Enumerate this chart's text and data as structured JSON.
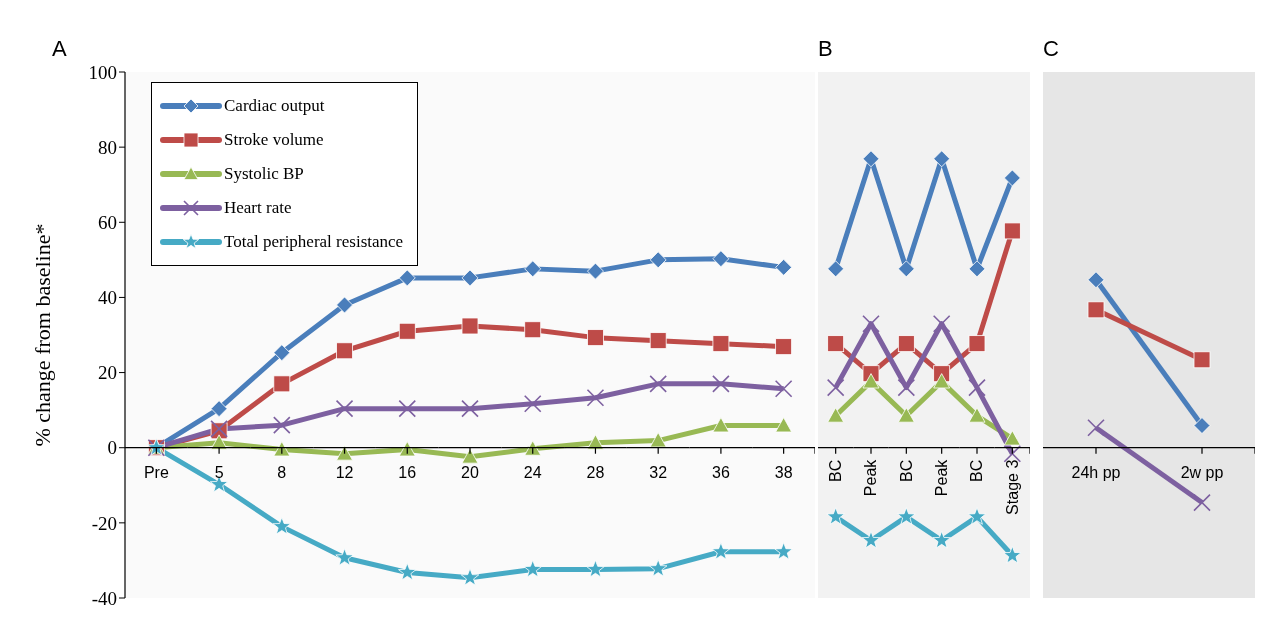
{
  "chart_data": [
    {
      "type": "line",
      "title": "A",
      "ylabel": "% change from baseline*",
      "categories": [
        "Pre",
        "5",
        "8",
        "12",
        "16",
        "20",
        "24",
        "28",
        "32",
        "36",
        "38"
      ],
      "ylim": [
        -40,
        100
      ],
      "yticks": [
        -40,
        -20,
        0,
        20,
        40,
        60,
        80,
        100
      ],
      "grid": false,
      "legend": "top left",
      "line_style": "solid",
      "series": [
        {
          "name": "Cardiac output",
          "color": "#4a7ebb",
          "marker": "diamond",
          "values": [
            0,
            10.4,
            25.3,
            38,
            45.2,
            45.2,
            47.6,
            47,
            50,
            50.3,
            48
          ]
        },
        {
          "name": "Stroke volume",
          "color": "#be4b48",
          "marker": "square",
          "values": [
            0,
            4.5,
            17,
            25.8,
            31,
            32.4,
            31.4,
            29.3,
            28.5,
            27.7,
            26.9
          ]
        },
        {
          "name": "Systolic BP",
          "color": "#98b954",
          "marker": "triangle",
          "values": [
            0,
            1.3,
            -0.5,
            -1.6,
            -0.5,
            -2.4,
            -0.3,
            1.3,
            1.9,
            5.9,
            5.9
          ]
        },
        {
          "name": "Heart rate",
          "color": "#7d60a0",
          "marker": "cross",
          "values": [
            0,
            5,
            6,
            10.4,
            10.4,
            10.4,
            11.7,
            13.3,
            17,
            17,
            15.7
          ]
        },
        {
          "name": "Total peripheral resistance",
          "color": "#46aac5",
          "marker": "star",
          "values": [
            0,
            -9.8,
            -21,
            -29.3,
            -33.2,
            -34.6,
            -32.4,
            -32.4,
            -32.2,
            -27.7,
            -27.7
          ]
        }
      ]
    },
    {
      "type": "line",
      "title": "B",
      "categories": [
        "BC",
        "Peak",
        "BC",
        "Peak",
        "BC",
        "Stage 3"
      ],
      "ylim": [
        -40,
        100
      ],
      "tick_labels": "x",
      "grid": false,
      "line_style": "solid",
      "series": [
        {
          "color": "#4a7ebb",
          "marker": "diamond",
          "values": [
            47.6,
            76.9,
            47.6,
            76.9,
            47.6,
            71.8
          ]
        },
        {
          "color": "#be4b48",
          "marker": "square",
          "values": [
            27.7,
            19.7,
            27.7,
            19.7,
            27.7,
            57.7
          ]
        },
        {
          "color": "#98b954",
          "marker": "triangle",
          "values": [
            8.5,
            17.6,
            8.5,
            17.6,
            8.5,
            2.4
          ]
        },
        {
          "color": "#7d60a0",
          "marker": "cross",
          "values": [
            16,
            33,
            16,
            33,
            16,
            -1.6
          ]
        },
        {
          "color": "#46aac5",
          "marker": "star",
          "values": [
            -18.4,
            -24.7,
            -18.4,
            -24.7,
            -18.4,
            -28.7
          ]
        }
      ]
    },
    {
      "type": "line",
      "title": "C",
      "categories": [
        "24h pp",
        "2w pp"
      ],
      "ylim": [
        -40,
        100
      ],
      "tick_labels": "x",
      "grid": false,
      "line_style": "solid",
      "series": [
        {
          "color": "#4a7ebb",
          "marker": "diamond",
          "values": [
            44.7,
            5.9
          ]
        },
        {
          "color": "#be4b48",
          "marker": "square",
          "values": [
            36.7,
            23.4
          ]
        },
        {
          "color": "#7d60a0",
          "marker": "cross",
          "values": [
            5.3,
            -14.6
          ]
        }
      ]
    }
  ]
}
